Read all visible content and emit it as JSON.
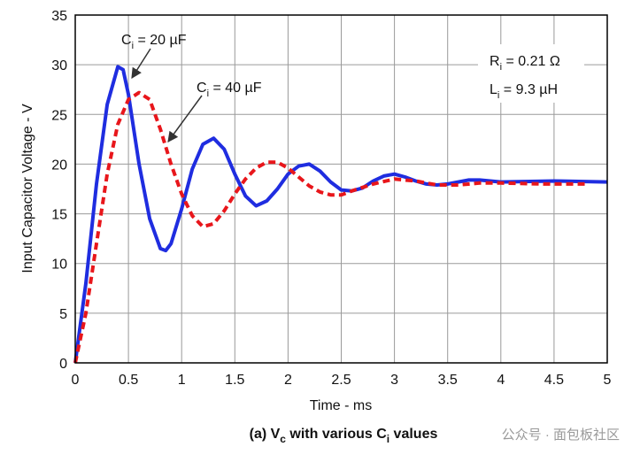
{
  "chart_data": {
    "type": "line",
    "x_label": "Time - ms",
    "y_label": "Input Capacitor Voltage - V",
    "caption": {
      "pre": "(a) V",
      "sub1": "c",
      "mid": " with various C",
      "sub2": "i",
      "post": " values"
    },
    "xlim": [
      0,
      5
    ],
    "xticks": [
      0,
      0.5,
      1,
      1.5,
      2,
      2.5,
      3,
      3.5,
      4,
      4.5,
      5
    ],
    "ylim": [
      0,
      35
    ],
    "yticks": [
      0,
      5,
      10,
      15,
      20,
      25,
      30,
      35
    ],
    "grid": true,
    "series": [
      {
        "color": "#1f2de0",
        "style": "solid",
        "x": [
          0,
          0.1,
          0.2,
          0.3,
          0.4,
          0.45,
          0.5,
          0.6,
          0.7,
          0.8,
          0.85,
          0.9,
          1.0,
          1.1,
          1.2,
          1.3,
          1.4,
          1.5,
          1.6,
          1.7,
          1.8,
          1.9,
          2.0,
          2.1,
          2.2,
          2.3,
          2.4,
          2.5,
          2.6,
          2.7,
          2.8,
          2.9,
          3.0,
          3.1,
          3.2,
          3.3,
          3.4,
          3.5,
          3.6,
          3.7,
          3.8,
          3.9,
          4.0,
          4.5,
          5.0
        ],
        "values": [
          0,
          8,
          18,
          26,
          29.8,
          29.5,
          27,
          20,
          14.5,
          11.5,
          11.3,
          12,
          15.5,
          19.5,
          22,
          22.6,
          21.5,
          19,
          16.8,
          15.8,
          16.3,
          17.5,
          19,
          19.8,
          20,
          19.3,
          18.2,
          17.4,
          17.3,
          17.6,
          18.3,
          18.8,
          19,
          18.7,
          18.3,
          18,
          17.9,
          18,
          18.2,
          18.4,
          18.4,
          18.3,
          18.2,
          18.3,
          18.2
        ]
      },
      {
        "color": "#e8161b",
        "style": "dashed",
        "x": [
          0,
          0.1,
          0.2,
          0.3,
          0.4,
          0.5,
          0.6,
          0.7,
          0.8,
          0.9,
          1.0,
          1.1,
          1.2,
          1.3,
          1.4,
          1.5,
          1.6,
          1.7,
          1.8,
          1.9,
          2.0,
          2.1,
          2.2,
          2.3,
          2.4,
          2.5,
          2.6,
          2.8,
          3.0,
          3.2,
          3.4,
          3.6,
          3.8,
          4.0,
          4.4,
          4.8
        ],
        "values": [
          0,
          5,
          12,
          19,
          24,
          26.5,
          27.2,
          26.5,
          23.5,
          20,
          17,
          14.8,
          13.7,
          14,
          15.3,
          17,
          18.5,
          19.6,
          20.2,
          20.2,
          19.6,
          18.7,
          17.8,
          17.2,
          16.9,
          16.9,
          17.3,
          18,
          18.5,
          18.3,
          17.9,
          17.9,
          18.1,
          18.1,
          18.0,
          18.0
        ]
      }
    ],
    "annotations": [
      {
        "main": "C",
        "sub": "i",
        "rest": " = 20 µF"
      },
      {
        "main": "C",
        "sub": "i",
        "rest": " = 40 µF"
      },
      {
        "main": "R",
        "sub": "i",
        "rest": " = 0.21 Ω"
      },
      {
        "main": "L",
        "sub": "i",
        "rest": " = 9.3 µH"
      }
    ],
    "watermark": "公众号 · 面包板社区"
  }
}
